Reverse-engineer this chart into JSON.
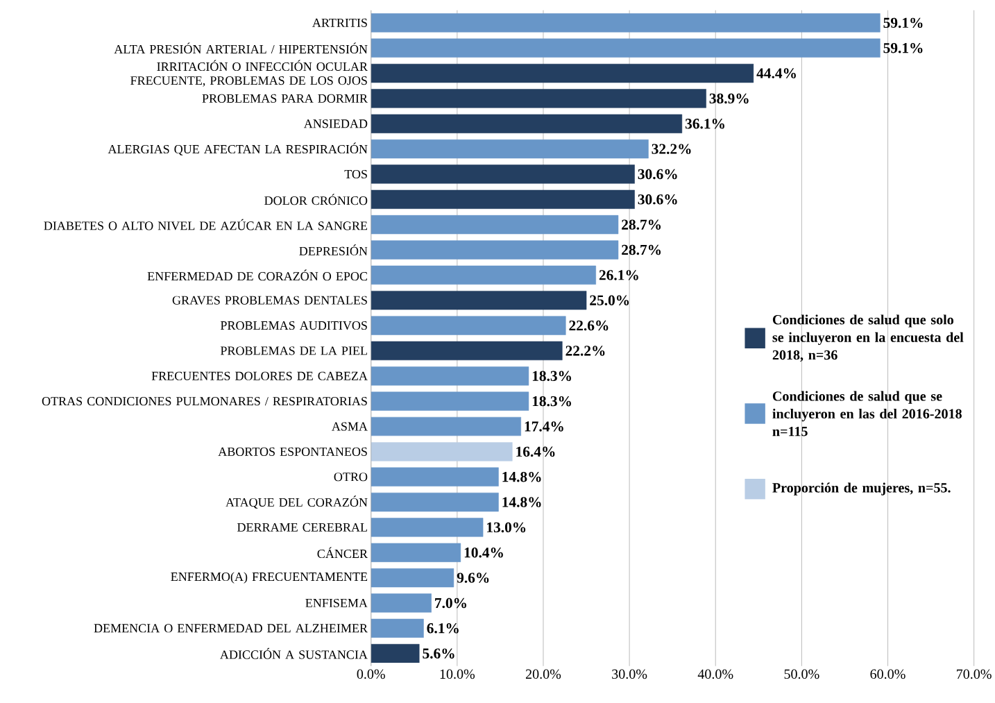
{
  "chart_data": {
    "type": "bar",
    "orientation": "horizontal",
    "categories": [
      "ARTRITIS",
      "ALTA PRESIÓN ARTERIAL / HIPERTENSIÓN",
      "IRRITACIÓN O INFECCIÓN OCULAR FRECUENTE, PROBLEMAS DE LOS OJOS",
      "PROBLEMAS PARA DORMIR",
      "ANSIEDAD",
      "ALERGIAS QUE AFECTAN LA RESPIRACIÓN",
      "TOS",
      "DOLOR CRÓNICO",
      "DIABETES O ALTO NIVEL DE AZÚCAR EN LA SANGRE",
      "DEPRESIÓN",
      "ENFERMEDAD DE CORAZÓN O EPOC",
      "GRAVES PROBLEMAS DENTALES",
      "PROBLEMAS AUDITIVOS",
      "PROBLEMAS DE LA PIEL",
      "FRECUENTES DOLORES DE CABEZA",
      "OTRAS CONDICIONES PULMONARES / RESPIRATORIAS",
      "ASMA",
      "ABORTOS ESPONTANEOS",
      "OTRO",
      "ATAQUE DEL CORAZÓN",
      "DERRAME CEREBRAL",
      "CÁNCER",
      "ENFERMO(A) FRECUENTAMENTE",
      "ENFISEMA",
      "DEMENCIA O ENFERMEDAD DEL ALZHEIMER",
      "ADICCIÓN A SUSTANCIA"
    ],
    "series": [
      {
        "name": "Condiciones de salud que solo se incluyeron en la encuesta del 2018, n=36",
        "color": "#243f61",
        "values": [
          null,
          null,
          44.4,
          38.9,
          36.1,
          null,
          30.6,
          30.6,
          null,
          null,
          null,
          25.0,
          null,
          22.2,
          null,
          null,
          null,
          null,
          null,
          null,
          null,
          null,
          null,
          null,
          null,
          5.6
        ],
        "value_labels": [
          null,
          null,
          "44.4%",
          "38.9%",
          "36.1%",
          null,
          "30.6%",
          "30.6%",
          null,
          null,
          null,
          "25.0%",
          null,
          "22.2%",
          null,
          null,
          null,
          null,
          null,
          null,
          null,
          null,
          null,
          null,
          null,
          "5.6%"
        ]
      },
      {
        "name": "Condiciones de salud que se incluyeron en las del 2016-2018 n=115",
        "color": "#6896c8",
        "values": [
          59.1,
          59.1,
          null,
          null,
          null,
          32.2,
          null,
          null,
          28.7,
          28.7,
          26.1,
          null,
          22.6,
          null,
          18.3,
          18.3,
          17.4,
          null,
          14.8,
          14.8,
          13.0,
          10.4,
          9.6,
          7.0,
          6.1,
          null
        ],
        "value_labels": [
          "59.1%",
          "59.1%",
          null,
          null,
          null,
          "32.2%",
          null,
          null,
          "28.7%",
          "28.7%",
          "26.1%",
          null,
          "22.6%",
          null,
          "18.3%",
          "18.3%",
          "17.4%",
          null,
          "14.8%",
          "14.8%",
          "13.0%",
          "10.4%",
          "9.6%",
          "7.0%",
          "6.1%",
          null
        ]
      },
      {
        "name": "Proporción de mujeres, n=55.",
        "color": "#b9cde5",
        "values": [
          null,
          null,
          null,
          null,
          null,
          null,
          null,
          null,
          null,
          null,
          null,
          null,
          null,
          null,
          null,
          null,
          null,
          16.4,
          null,
          null,
          null,
          null,
          null,
          null,
          null,
          null
        ],
        "value_labels": [
          null,
          null,
          null,
          null,
          null,
          null,
          null,
          null,
          null,
          null,
          null,
          null,
          null,
          null,
          null,
          null,
          null,
          "16.4%",
          null,
          null,
          null,
          null,
          null,
          null,
          null,
          null
        ]
      }
    ],
    "xlim": [
      0,
      70
    ],
    "xticks": [
      {
        "value": 0,
        "label": "0.0%"
      },
      {
        "value": 10,
        "label": "10.0%"
      },
      {
        "value": 20,
        "label": "20.0%"
      },
      {
        "value": 30,
        "label": "30.0%"
      },
      {
        "value": 40,
        "label": "40.0%"
      },
      {
        "value": 50,
        "label": "50.0%"
      },
      {
        "value": 60,
        "label": "60.0%"
      },
      {
        "value": 70,
        "label": "70.0%"
      }
    ],
    "grid": "x",
    "legend": "right"
  }
}
